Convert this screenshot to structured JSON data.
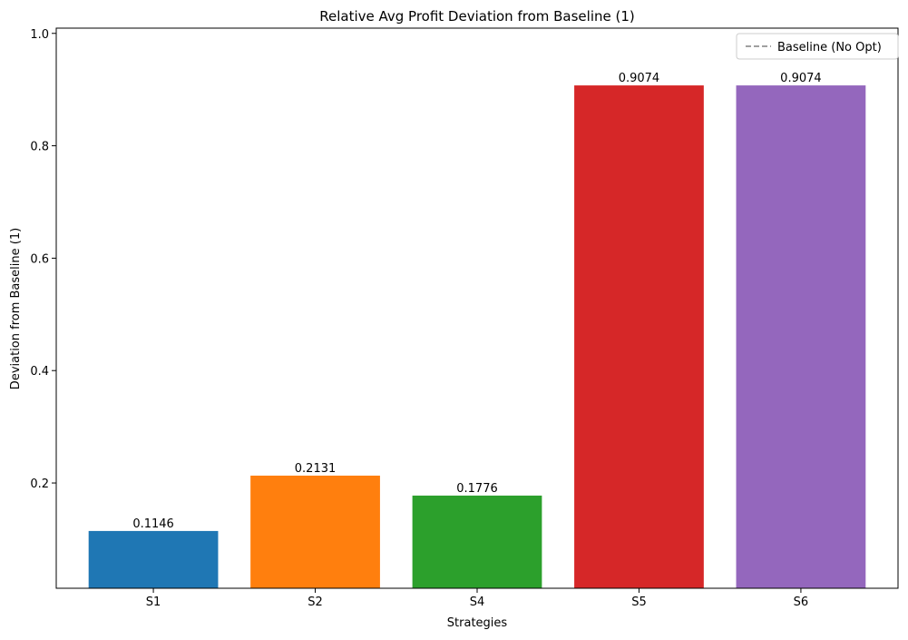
{
  "chart_data": {
    "type": "bar",
    "title": "Relative Avg Profit Deviation from Baseline (1)",
    "xlabel": "Strategies",
    "ylabel": "Deviation from Baseline (1)",
    "categories": [
      "S1",
      "S2",
      "S4",
      "S5",
      "S6"
    ],
    "values": [
      0.1146,
      0.2131,
      0.1776,
      0.9074,
      0.9074
    ],
    "value_labels": [
      "0.1146",
      "0.2131",
      "0.1776",
      "0.9074",
      "0.9074"
    ],
    "bar_colors": [
      "#1f77b4",
      "#ff7f0e",
      "#2ca02c",
      "#d62728",
      "#9467bd"
    ],
    "ylim": [
      0.0127,
      1.0093
    ],
    "yticks": [
      0.2,
      0.4,
      0.6,
      0.8,
      1.0
    ],
    "ytick_labels": [
      "0.2",
      "0.4",
      "0.6",
      "0.8",
      "1.0"
    ],
    "grid": false,
    "legend": {
      "placement": "top-right",
      "entries": [
        {
          "label": "Baseline (No Opt)",
          "style": "dashed-line",
          "color": "#808080"
        }
      ]
    }
  }
}
